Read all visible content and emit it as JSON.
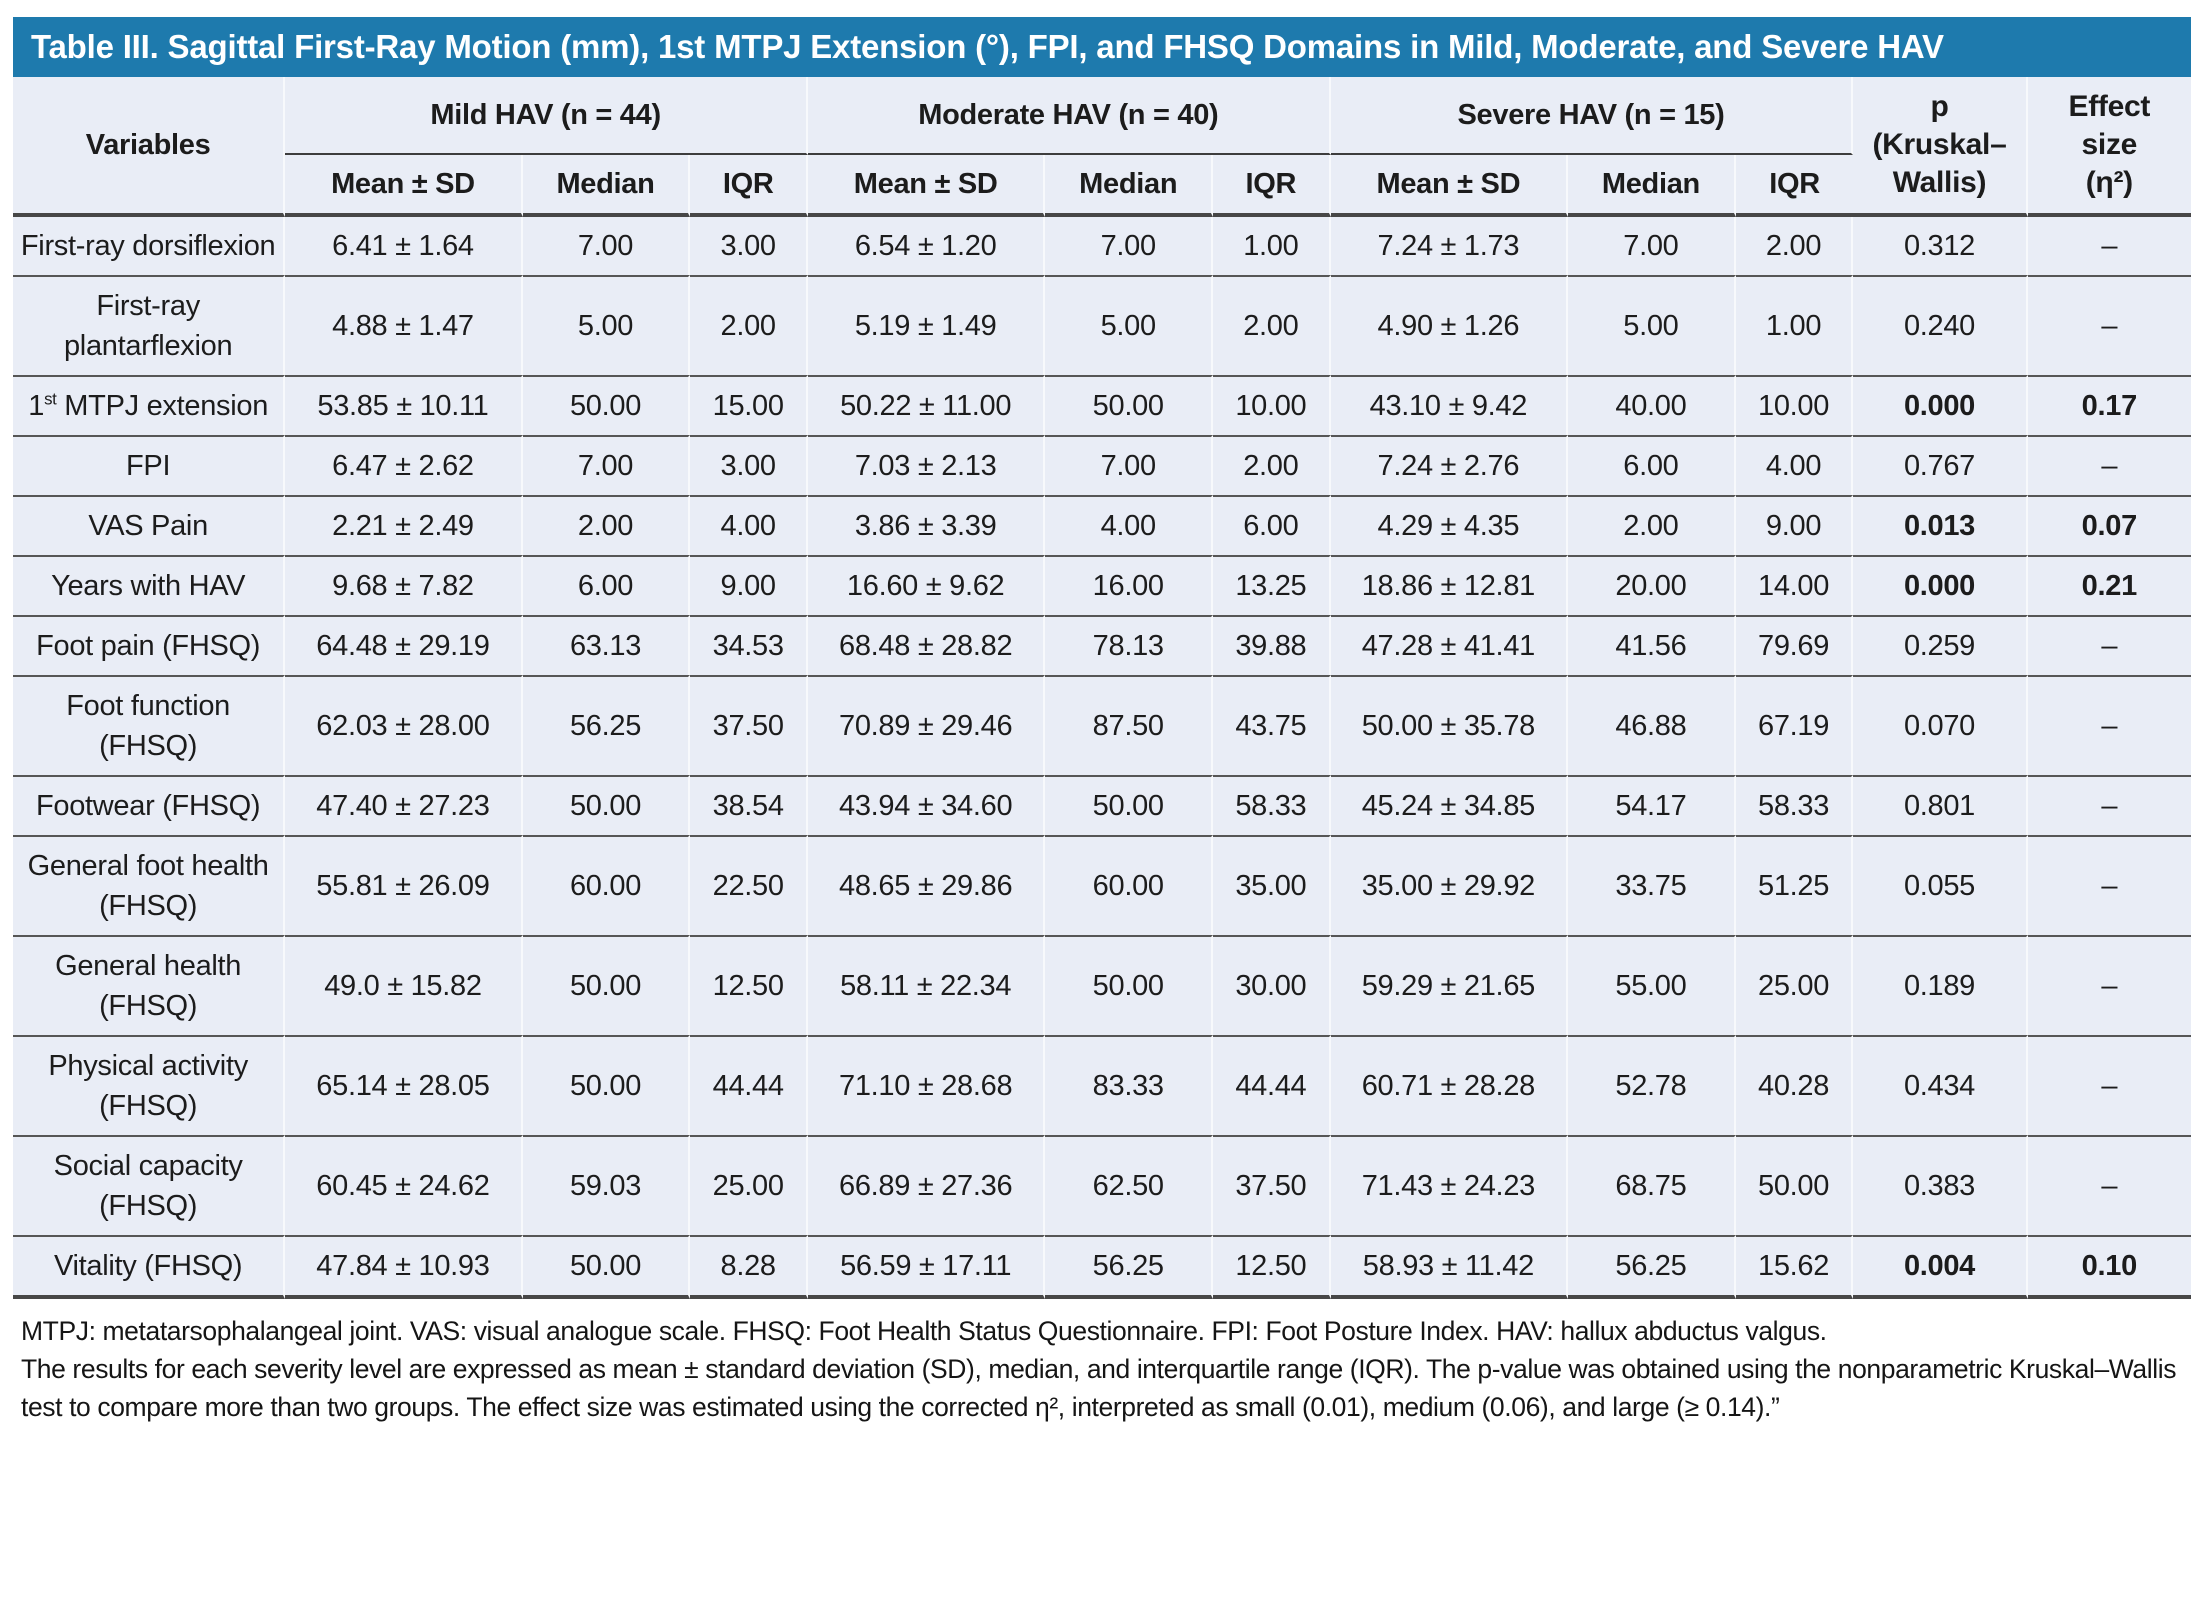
{
  "title": "Table III. Sagittal First-Ray Motion (mm), 1st MTPJ Extension (°), FPI, and FHSQ Domains in Mild, Moderate, and Severe HAV",
  "columns": {
    "variables_label": "Variables",
    "groups": [
      "Mild HAV (n = 44)",
      "Moderate HAV (n = 40)",
      "Severe HAV (n = 15)"
    ],
    "sub_columns": [
      "Mean ± SD",
      "Median",
      "IQR"
    ],
    "p_label": "p\n(Kruskal–\nWallis)",
    "effect_label": "Effect\nsize\n(η²)"
  },
  "rows": [
    {
      "variable": "First-ray dorsiflexion",
      "mild": {
        "mean_sd": "6.41 ± 1.64",
        "median": "7.00",
        "iqr": "3.00"
      },
      "moderate": {
        "mean_sd": "6.54 ± 1.20",
        "median": "7.00",
        "iqr": "1.00"
      },
      "severe": {
        "mean_sd": "7.24 ± 1.73",
        "median": "7.00",
        "iqr": "2.00"
      },
      "p": "0.312",
      "effect": "–",
      "significant": false
    },
    {
      "variable": "First-ray plantarflexion",
      "mild": {
        "mean_sd": "4.88 ± 1.47",
        "median": "5.00",
        "iqr": "2.00"
      },
      "moderate": {
        "mean_sd": "5.19 ± 1.49",
        "median": "5.00",
        "iqr": "2.00"
      },
      "severe": {
        "mean_sd": "4.90 ± 1.26",
        "median": "5.00",
        "iqr": "1.00"
      },
      "p": "0.240",
      "effect": "–",
      "significant": false
    },
    {
      "variable": "1st MTPJ extension",
      "variable_parts": [
        {
          "text": "1"
        },
        {
          "text": "st",
          "sup": true
        },
        {
          "text": " MTPJ extension"
        }
      ],
      "mild": {
        "mean_sd": "53.85 ± 10.11",
        "median": "50.00",
        "iqr": "15.00"
      },
      "moderate": {
        "mean_sd": "50.22 ± 11.00",
        "median": "50.00",
        "iqr": "10.00"
      },
      "severe": {
        "mean_sd": "43.10 ± 9.42",
        "median": "40.00",
        "iqr": "10.00"
      },
      "p": "0.000",
      "effect": "0.17",
      "significant": true
    },
    {
      "variable": "FPI",
      "mild": {
        "mean_sd": "6.47 ± 2.62",
        "median": "7.00",
        "iqr": "3.00"
      },
      "moderate": {
        "mean_sd": "7.03 ± 2.13",
        "median": "7.00",
        "iqr": "2.00"
      },
      "severe": {
        "mean_sd": "7.24 ± 2.76",
        "median": "6.00",
        "iqr": "4.00"
      },
      "p": "0.767",
      "effect": "–",
      "significant": false
    },
    {
      "variable": "VAS Pain",
      "mild": {
        "mean_sd": "2.21 ± 2.49",
        "median": "2.00",
        "iqr": "4.00"
      },
      "moderate": {
        "mean_sd": "3.86 ± 3.39",
        "median": "4.00",
        "iqr": "6.00"
      },
      "severe": {
        "mean_sd": "4.29 ± 4.35",
        "median": "2.00",
        "iqr": "9.00"
      },
      "p": "0.013",
      "effect": "0.07",
      "significant": true
    },
    {
      "variable": "Years with HAV",
      "mild": {
        "mean_sd": "9.68 ± 7.82",
        "median": "6.00",
        "iqr": "9.00"
      },
      "moderate": {
        "mean_sd": "16.60 ± 9.62",
        "median": "16.00",
        "iqr": "13.25"
      },
      "severe": {
        "mean_sd": "18.86 ± 12.81",
        "median": "20.00",
        "iqr": "14.00"
      },
      "p": "0.000",
      "effect": "0.21",
      "significant": true
    },
    {
      "variable": "Foot pain (FHSQ)",
      "mild": {
        "mean_sd": "64.48 ± 29.19",
        "median": "63.13",
        "iqr": "34.53"
      },
      "moderate": {
        "mean_sd": "68.48 ± 28.82",
        "median": "78.13",
        "iqr": "39.88"
      },
      "severe": {
        "mean_sd": "47.28 ± 41.41",
        "median": "41.56",
        "iqr": "79.69"
      },
      "p": "0.259",
      "effect": "–",
      "significant": false
    },
    {
      "variable": "Foot function (FHSQ)",
      "mild": {
        "mean_sd": "62.03 ± 28.00",
        "median": "56.25",
        "iqr": "37.50"
      },
      "moderate": {
        "mean_sd": "70.89 ± 29.46",
        "median": "87.50",
        "iqr": "43.75"
      },
      "severe": {
        "mean_sd": "50.00 ± 35.78",
        "median": "46.88",
        "iqr": "67.19"
      },
      "p": "0.070",
      "effect": "–",
      "significant": false
    },
    {
      "variable": "Footwear (FHSQ)",
      "mild": {
        "mean_sd": "47.40 ± 27.23",
        "median": "50.00",
        "iqr": "38.54"
      },
      "moderate": {
        "mean_sd": "43.94 ± 34.60",
        "median": "50.00",
        "iqr": "58.33"
      },
      "severe": {
        "mean_sd": "45.24 ± 34.85",
        "median": "54.17",
        "iqr": "58.33"
      },
      "p": "0.801",
      "effect": "–",
      "significant": false
    },
    {
      "variable": "General foot health (FHSQ)",
      "mild": {
        "mean_sd": "55.81 ± 26.09",
        "median": "60.00",
        "iqr": "22.50"
      },
      "moderate": {
        "mean_sd": "48.65 ± 29.86",
        "median": "60.00",
        "iqr": "35.00"
      },
      "severe": {
        "mean_sd": "35.00 ± 29.92",
        "median": "33.75",
        "iqr": "51.25"
      },
      "p": "0.055",
      "effect": "–",
      "significant": false
    },
    {
      "variable": "General health (FHSQ)",
      "mild": {
        "mean_sd": "49.0 ± 15.82",
        "median": "50.00",
        "iqr": "12.50"
      },
      "moderate": {
        "mean_sd": "58.11 ± 22.34",
        "median": "50.00",
        "iqr": "30.00"
      },
      "severe": {
        "mean_sd": "59.29 ± 21.65",
        "median": "55.00",
        "iqr": "25.00"
      },
      "p": "0.189",
      "effect": "–",
      "significant": false
    },
    {
      "variable": "Physical activity (FHSQ)",
      "mild": {
        "mean_sd": "65.14 ± 28.05",
        "median": "50.00",
        "iqr": "44.44"
      },
      "moderate": {
        "mean_sd": "71.10 ± 28.68",
        "median": "83.33",
        "iqr": "44.44"
      },
      "severe": {
        "mean_sd": "60.71 ± 28.28",
        "median": "52.78",
        "iqr": "40.28"
      },
      "p": "0.434",
      "effect": "–",
      "significant": false
    },
    {
      "variable": "Social capacity (FHSQ)",
      "mild": {
        "mean_sd": "60.45 ± 24.62",
        "median": "59.03",
        "iqr": "25.00"
      },
      "moderate": {
        "mean_sd": "66.89 ± 27.36",
        "median": "62.50",
        "iqr": "37.50"
      },
      "severe": {
        "mean_sd": "71.43 ± 24.23",
        "median": "68.75",
        "iqr": "50.00"
      },
      "p": "0.383",
      "effect": "–",
      "significant": false
    },
    {
      "variable": "Vitality (FHSQ)",
      "mild": {
        "mean_sd": "47.84 ± 10.93",
        "median": "50.00",
        "iqr": "8.28"
      },
      "moderate": {
        "mean_sd": "56.59 ± 17.11",
        "median": "56.25",
        "iqr": "12.50"
      },
      "severe": {
        "mean_sd": "58.93 ± 11.42",
        "median": "56.25",
        "iqr": "15.62"
      },
      "p": "0.004",
      "effect": "0.10",
      "significant": true
    }
  ],
  "footnotes": {
    "abbreviations": "MTPJ: metatarsophalangeal joint. VAS: visual analogue scale. FHSQ: Foot Health Status Questionnaire. FPI: Foot Posture Index. HAV: hallux abductus valgus.",
    "methods": "The results for each severity level are expressed as mean ± standard deviation (SD), median, and interquartile range (IQR). The p-value was obtained using the nonparametric Kruskal–Wallis test to compare more than two groups. The effect size was estimated using the corrected η², interpreted as small (0.01), medium (0.06), and large (≥ 0.14).”"
  },
  "colors": {
    "title_bar": "#1E7AAD",
    "title_text": "#FFFFFF",
    "table_background": "#E9EDF6",
    "text": "#1C1C1C",
    "rule": "#565656",
    "heavy_rule": "#474747"
  }
}
